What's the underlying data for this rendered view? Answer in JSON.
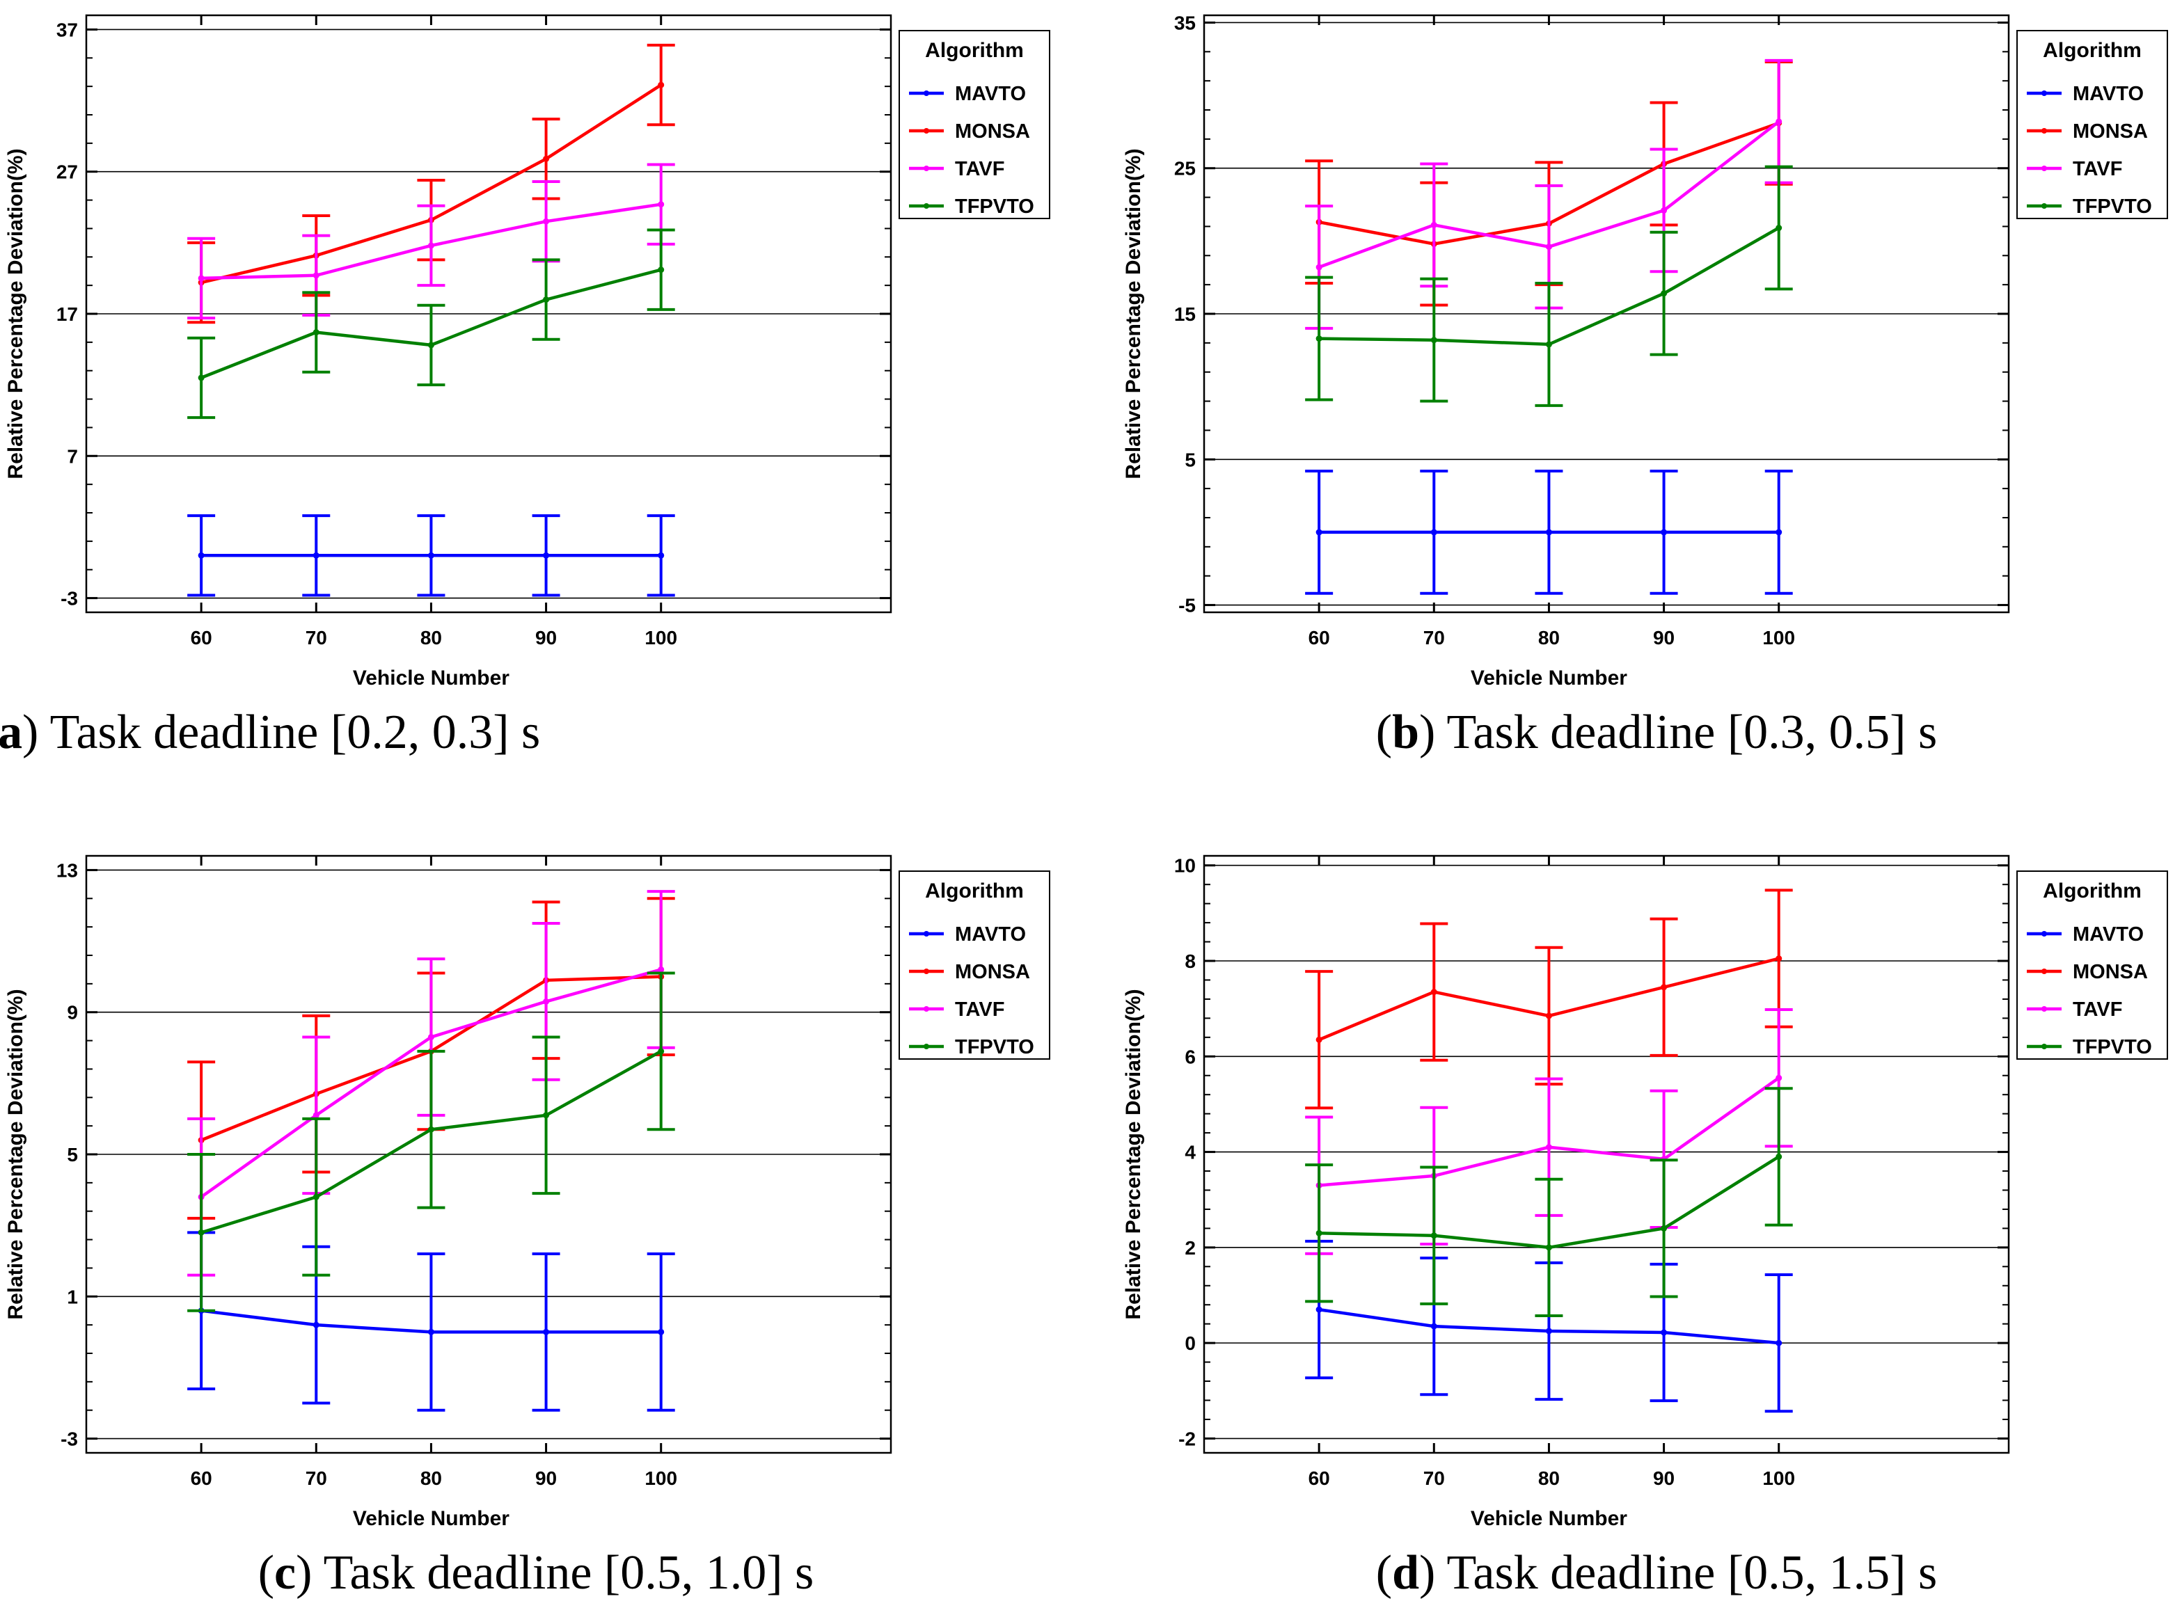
{
  "figure": {
    "legend_title": "Algorithm",
    "xlabel": "Vehicle Number",
    "ylabel": "Relative Percentage Deviation(%)"
  },
  "chart_data": [
    {
      "type": "line",
      "panel": "a",
      "caption_letter": "a",
      "caption_text": "Task deadline [0.2, 0.3] s",
      "title": "",
      "xlabel": "Vehicle Number",
      "ylabel": "Relative Percentage Deviation(%)",
      "categories": [
        "60",
        "70",
        "80",
        "90",
        "100"
      ],
      "x_range": [
        50,
        120
      ],
      "ylim": [
        -4,
        38
      ],
      "yticks": [
        -3,
        7,
        17,
        27,
        37
      ],
      "ytick_labels": [
        "-3",
        "7",
        "17",
        "27",
        "37"
      ],
      "grid": true,
      "legend": "top-right",
      "series": [
        {
          "name": "MAVTO",
          "color": "#0000ff",
          "values": [
            0,
            0,
            0,
            0,
            0
          ],
          "err": [
            2.8,
            2.8,
            2.8,
            2.8,
            2.8
          ]
        },
        {
          "name": "MONSA",
          "color": "#ff0000",
          "values": [
            19.2,
            21.1,
            23.6,
            27.9,
            33.1
          ],
          "err": [
            2.8,
            2.8,
            2.8,
            2.8,
            2.8
          ]
        },
        {
          "name": "TAVF",
          "color": "#ff00ff",
          "values": [
            19.5,
            19.7,
            21.8,
            23.5,
            24.7
          ],
          "err": [
            2.8,
            2.8,
            2.8,
            2.8,
            2.8
          ]
        },
        {
          "name": "TFPVTO",
          "color": "#008000",
          "values": [
            12.5,
            15.7,
            14.8,
            18.0,
            20.1
          ],
          "err": [
            2.8,
            2.8,
            2.8,
            2.8,
            2.8
          ]
        }
      ]
    },
    {
      "type": "line",
      "panel": "b",
      "caption_letter": "b",
      "caption_text": "Task deadline [0.3, 0.5] s",
      "title": "",
      "xlabel": "Vehicle Number",
      "ylabel": "Relative Percentage Deviation(%)",
      "categories": [
        "60",
        "70",
        "80",
        "90",
        "100"
      ],
      "x_range": [
        50,
        120
      ],
      "ylim": [
        -5.5,
        35.5
      ],
      "yticks": [
        -5,
        5,
        15,
        25,
        35
      ],
      "ytick_labels": [
        "-5",
        "5",
        "15",
        "25",
        "35"
      ],
      "grid": true,
      "legend": "top-right",
      "series": [
        {
          "name": "MAVTO",
          "color": "#0000ff",
          "values": [
            0,
            0,
            0,
            0,
            0
          ],
          "err": [
            4.2,
            4.2,
            4.2,
            4.2,
            4.2
          ]
        },
        {
          "name": "MONSA",
          "color": "#ff0000",
          "values": [
            21.3,
            19.8,
            21.2,
            25.3,
            28.1
          ],
          "err": [
            4.2,
            4.2,
            4.2,
            4.2,
            4.2
          ]
        },
        {
          "name": "TAVF",
          "color": "#ff00ff",
          "values": [
            18.2,
            21.1,
            19.6,
            22.1,
            28.2
          ],
          "err": [
            4.2,
            4.2,
            4.2,
            4.2,
            4.2
          ]
        },
        {
          "name": "TFPVTO",
          "color": "#008000",
          "values": [
            13.3,
            13.2,
            12.9,
            16.4,
            20.9
          ],
          "err": [
            4.2,
            4.2,
            4.2,
            4.2,
            4.2
          ]
        }
      ]
    },
    {
      "type": "line",
      "panel": "c",
      "caption_letter": "c",
      "caption_text": "Task deadline [0.5, 1.0] s",
      "title": "",
      "xlabel": "Vehicle Number",
      "ylabel": "Relative Percentage Deviation(%)",
      "categories": [
        "60",
        "70",
        "80",
        "90",
        "100"
      ],
      "x_range": [
        50,
        120
      ],
      "ylim": [
        -3.4,
        13.4
      ],
      "yticks": [
        -3,
        1,
        5,
        9,
        13
      ],
      "ytick_labels": [
        "-3",
        "1",
        "5",
        "9",
        "13"
      ],
      "grid": true,
      "legend": "top-right",
      "series": [
        {
          "name": "MAVTO",
          "color": "#0000ff",
          "values": [
            0.6,
            0.2,
            0.0,
            0.0,
            0.0
          ],
          "err": [
            2.2,
            2.2,
            2.2,
            2.2,
            2.2
          ]
        },
        {
          "name": "MONSA",
          "color": "#ff0000",
          "values": [
            5.4,
            6.7,
            7.9,
            9.9,
            10.0
          ],
          "err": [
            2.2,
            2.2,
            2.2,
            2.2,
            2.2
          ]
        },
        {
          "name": "TAVF",
          "color": "#ff00ff",
          "values": [
            3.8,
            6.1,
            8.3,
            9.3,
            10.2
          ],
          "err": [
            2.2,
            2.2,
            2.2,
            2.2,
            2.2
          ]
        },
        {
          "name": "TFPVTO",
          "color": "#008000",
          "values": [
            2.8,
            3.8,
            5.7,
            6.1,
            7.9
          ],
          "err": [
            2.2,
            2.2,
            2.2,
            2.2,
            2.2
          ]
        }
      ]
    },
    {
      "type": "line",
      "panel": "d",
      "caption_letter": "d",
      "caption_text": "Task deadline [0.5, 1.5] s",
      "title": "",
      "xlabel": "Vehicle Number",
      "ylabel": "Relative Percentage Deviation(%)",
      "categories": [
        "60",
        "70",
        "80",
        "90",
        "100"
      ],
      "x_range": [
        50,
        120
      ],
      "ylim": [
        -2.3,
        10.2
      ],
      "yticks": [
        -2,
        0,
        2,
        4,
        6,
        8,
        10
      ],
      "ytick_labels": [
        "-2",
        "0",
        "2",
        "4",
        "6",
        "8",
        "10"
      ],
      "grid": true,
      "legend": "top-right",
      "series": [
        {
          "name": "MAVTO",
          "color": "#0000ff",
          "values": [
            0.7,
            0.35,
            0.25,
            0.22,
            0.0
          ],
          "err": [
            1.43,
            1.43,
            1.43,
            1.43,
            1.43
          ]
        },
        {
          "name": "MONSA",
          "color": "#ff0000",
          "values": [
            6.35,
            7.35,
            6.85,
            7.45,
            8.05
          ],
          "err": [
            1.43,
            1.43,
            1.43,
            1.43,
            1.43
          ]
        },
        {
          "name": "TAVF",
          "color": "#ff00ff",
          "values": [
            3.3,
            3.5,
            4.1,
            3.85,
            5.55
          ],
          "err": [
            1.43,
            1.43,
            1.43,
            1.43,
            1.43
          ]
        },
        {
          "name": "TFPVTO",
          "color": "#008000",
          "values": [
            2.3,
            2.25,
            2.0,
            2.4,
            3.9
          ],
          "err": [
            1.43,
            1.43,
            1.43,
            1.43,
            1.43
          ]
        }
      ]
    }
  ]
}
